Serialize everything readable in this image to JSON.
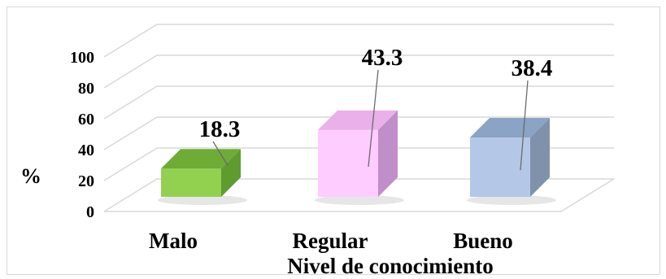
{
  "chart_data": {
    "type": "bar",
    "categories": [
      "Malo",
      "Regular",
      "Bueno"
    ],
    "values": [
      18.3,
      43.3,
      38.4
    ],
    "data_labels": [
      "18.3",
      "43.3",
      "38.4"
    ],
    "title": "",
    "xlabel": "Nivel de conocimiento",
    "ylabel": "%",
    "ylim": [
      0,
      100
    ],
    "yticks": [
      0,
      20,
      40,
      60,
      80,
      100
    ],
    "ytick_labels": [
      "0",
      "20",
      "40",
      "60",
      "80",
      "100"
    ],
    "grid": true,
    "style": "3d-column",
    "colors": [
      "#92d050",
      "#ffccff",
      "#b4c7e7"
    ]
  }
}
